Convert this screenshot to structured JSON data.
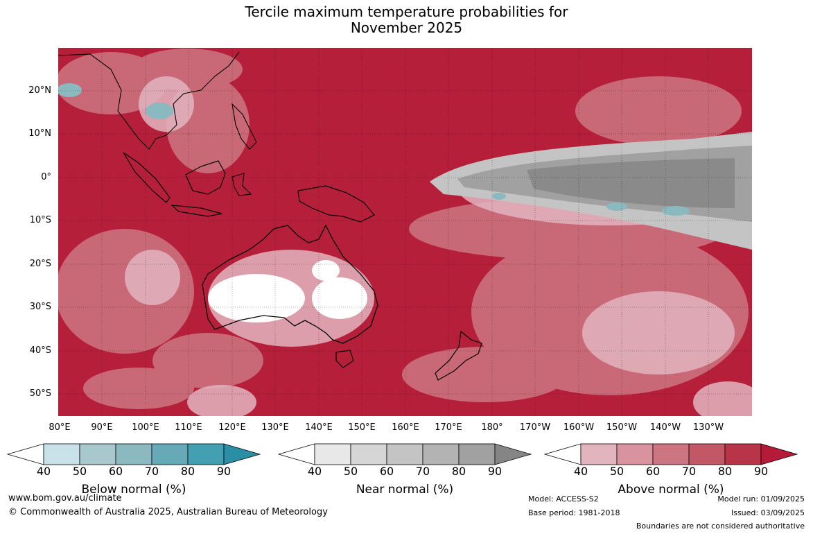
{
  "title": {
    "line1": "Tercile maximum temperature probabilities for",
    "line2": "November 2025"
  },
  "map": {
    "lat_labels": [
      "20°N",
      "10°N",
      "0°",
      "10°S",
      "20°S",
      "30°S",
      "40°S",
      "50°S"
    ],
    "lon_labels": [
      "80°E",
      "90°E",
      "100°E",
      "110°E",
      "120°E",
      "130°E",
      "140°E",
      "150°E",
      "160°E",
      "170°E",
      "180°",
      "170°W",
      "160°W",
      "150°W",
      "140°W",
      "130°W"
    ],
    "colors": {
      "ocean_high": "#b51f3a",
      "grey_band": "#8a8a8a",
      "land_outline": "#000000"
    }
  },
  "colorbars": [
    {
      "name": "Below normal (%)",
      "ticks": [
        "40",
        "50",
        "60",
        "70",
        "80",
        "90"
      ],
      "colors": [
        "#ffffff",
        "#c9e1e8",
        "#a8c8cd",
        "#8ab9bf",
        "#66aab7",
        "#43a0b2",
        "#2a8fa4"
      ]
    },
    {
      "name": "Near normal (%)",
      "ticks": [
        "40",
        "50",
        "60",
        "70",
        "80",
        "90"
      ],
      "colors": [
        "#ffffff",
        "#e8e8e8",
        "#d6d6d6",
        "#c4c4c4",
        "#b3b3b3",
        "#a1a1a1",
        "#858585"
      ]
    },
    {
      "name": "Above normal (%)",
      "ticks": [
        "40",
        "50",
        "60",
        "70",
        "80",
        "90"
      ],
      "colors": [
        "#ffffff",
        "#e2b5be",
        "#d8939f",
        "#cd7682",
        "#c25866",
        "#b83549",
        "#b51a38"
      ]
    }
  ],
  "footer": {
    "url": "www.bom.gov.au/climate",
    "copyright": "© Commonwealth of Australia 2025, Australian Bureau of Meteorology",
    "model": "Model: ACCESS-S2",
    "base_period": "Base period: 1981-2018",
    "model_run": "Model run: 01/09/2025",
    "issued": "Issued: 03/09/2025",
    "disclaimer": "Boundaries are not considered authoritative"
  }
}
